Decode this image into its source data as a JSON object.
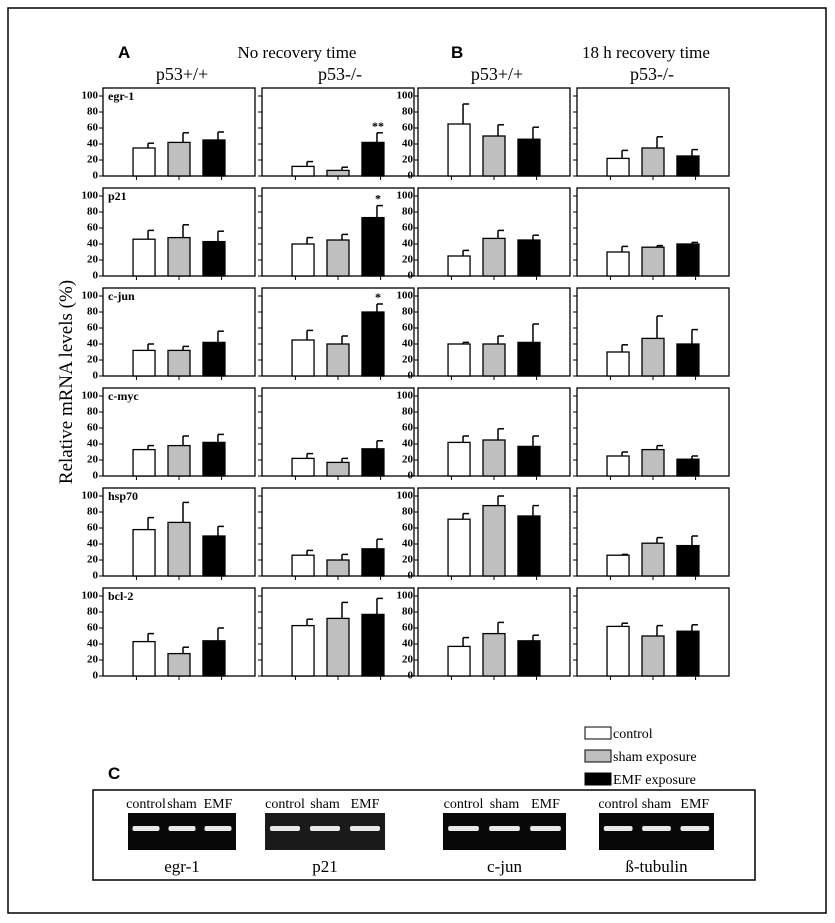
{
  "figure": {
    "panels": [
      {
        "label": "A",
        "title": "No recovery time",
        "columns": [
          "p53+/+",
          "p53-/-"
        ]
      },
      {
        "label": "B",
        "title": "18 h recovery time",
        "columns": [
          "p53+/+",
          "p53-/-"
        ]
      }
    ],
    "y_axis_label": "Relative mRNA levels (%)",
    "legend": [
      {
        "name": "control",
        "color": "#ffffff"
      },
      {
        "name": "sham exposure",
        "color": "#bfbfbf"
      },
      {
        "name": "EMF exposure",
        "color": "#000000"
      }
    ],
    "gel_panel": {
      "label": "C",
      "gels": [
        {
          "lanes": [
            "control",
            "sham",
            "EMF"
          ],
          "label": "egr-1"
        },
        {
          "lanes": [
            "control",
            "sham",
            "EMF"
          ],
          "label": "p21"
        },
        {
          "lanes": [
            "control",
            "sham",
            "EMF"
          ],
          "label": "c-jun"
        },
        {
          "lanes": [
            "control",
            "sham",
            "EMF"
          ],
          "label": "ß-tubulin"
        }
      ]
    }
  },
  "chart_data": [
    {
      "type": "bar",
      "title": "egr-1",
      "values": [
        35,
        42,
        45
      ],
      "errors": [
        6,
        12,
        10
      ],
      "ylim": [
        0,
        100
      ],
      "yticks": [
        0,
        20,
        40,
        60,
        80,
        100
      ],
      "ytick_labels": true
    },
    {
      "type": "bar",
      "values": [
        12,
        7,
        42
      ],
      "errors": [
        6,
        4,
        12
      ],
      "annotations": [
        null,
        null,
        "**"
      ],
      "ylim": [
        0,
        100
      ],
      "yticks": [
        0,
        20,
        40,
        60,
        80,
        100
      ],
      "ytick_labels": false
    },
    {
      "type": "bar",
      "values": [
        65,
        50,
        46
      ],
      "errors": [
        25,
        14,
        15
      ],
      "ylim": [
        0,
        100
      ],
      "yticks": [
        0,
        20,
        40,
        60,
        80,
        100
      ],
      "ytick_labels": true
    },
    {
      "type": "bar",
      "values": [
        22,
        35,
        25
      ],
      "errors": [
        10,
        14,
        8
      ],
      "ylim": [
        0,
        100
      ],
      "yticks": [
        0,
        20,
        40,
        60,
        80,
        100
      ],
      "ytick_labels": false
    },
    {
      "type": "bar",
      "title": "p21",
      "values": [
        46,
        48,
        43
      ],
      "errors": [
        11,
        16,
        13
      ],
      "ylim": [
        0,
        100
      ],
      "yticks": [
        0,
        20,
        40,
        60,
        80,
        100
      ],
      "ytick_labels": true
    },
    {
      "type": "bar",
      "values": [
        40,
        45,
        73
      ],
      "errors": [
        8,
        7,
        15
      ],
      "annotations": [
        null,
        null,
        "*"
      ],
      "ylim": [
        0,
        100
      ],
      "yticks": [
        0,
        20,
        40,
        60,
        80,
        100
      ],
      "ytick_labels": false
    },
    {
      "type": "bar",
      "values": [
        25,
        47,
        45
      ],
      "errors": [
        7,
        10,
        6
      ],
      "ylim": [
        0,
        100
      ],
      "yticks": [
        0,
        20,
        40,
        60,
        80,
        100
      ],
      "ytick_labels": true
    },
    {
      "type": "bar",
      "values": [
        30,
        36,
        40
      ],
      "errors": [
        7,
        2,
        2
      ],
      "ylim": [
        0,
        100
      ],
      "yticks": [
        0,
        20,
        40,
        60,
        80,
        100
      ],
      "ytick_labels": false
    },
    {
      "type": "bar",
      "title": "c-jun",
      "values": [
        32,
        32,
        42
      ],
      "errors": [
        8,
        5,
        14
      ],
      "ylim": [
        0,
        100
      ],
      "yticks": [
        0,
        20,
        40,
        60,
        80,
        100
      ],
      "ytick_labels": true
    },
    {
      "type": "bar",
      "values": [
        45,
        40,
        80
      ],
      "errors": [
        12,
        10,
        10
      ],
      "annotations": [
        null,
        null,
        "*"
      ],
      "ylim": [
        0,
        100
      ],
      "yticks": [
        0,
        20,
        40,
        60,
        80,
        100
      ],
      "ytick_labels": false
    },
    {
      "type": "bar",
      "values": [
        40,
        40,
        42
      ],
      "errors": [
        2,
        10,
        23
      ],
      "ylim": [
        0,
        100
      ],
      "yticks": [
        0,
        20,
        40,
        60,
        80,
        100
      ],
      "ytick_labels": true
    },
    {
      "type": "bar",
      "values": [
        30,
        47,
        40
      ],
      "errors": [
        9,
        28,
        18
      ],
      "ylim": [
        0,
        100
      ],
      "yticks": [
        0,
        20,
        40,
        60,
        80,
        100
      ],
      "ytick_labels": false
    },
    {
      "type": "bar",
      "title": "c-myc",
      "values": [
        33,
        38,
        42
      ],
      "errors": [
        5,
        12,
        10
      ],
      "ylim": [
        0,
        100
      ],
      "yticks": [
        0,
        20,
        40,
        60,
        80,
        100
      ],
      "ytick_labels": true
    },
    {
      "type": "bar",
      "values": [
        22,
        17,
        34
      ],
      "errors": [
        6,
        5,
        10
      ],
      "ylim": [
        0,
        100
      ],
      "yticks": [
        0,
        20,
        40,
        60,
        80,
        100
      ],
      "ytick_labels": false
    },
    {
      "type": "bar",
      "values": [
        42,
        45,
        37
      ],
      "errors": [
        8,
        14,
        13
      ],
      "ylim": [
        0,
        100
      ],
      "yticks": [
        0,
        20,
        40,
        60,
        80,
        100
      ],
      "ytick_labels": true
    },
    {
      "type": "bar",
      "values": [
        25,
        33,
        21
      ],
      "errors": [
        5,
        5,
        4
      ],
      "ylim": [
        0,
        100
      ],
      "yticks": [
        0,
        20,
        40,
        60,
        80,
        100
      ],
      "ytick_labels": false
    },
    {
      "type": "bar",
      "title": "hsp70",
      "values": [
        58,
        67,
        50
      ],
      "errors": [
        15,
        25,
        12
      ],
      "ylim": [
        0,
        100
      ],
      "yticks": [
        0,
        20,
        40,
        60,
        80,
        100
      ],
      "ytick_labels": true
    },
    {
      "type": "bar",
      "values": [
        26,
        20,
        34
      ],
      "errors": [
        6,
        7,
        12
      ],
      "ylim": [
        0,
        100
      ],
      "yticks": [
        0,
        20,
        40,
        60,
        80,
        100
      ],
      "ytick_labels": false
    },
    {
      "type": "bar",
      "values": [
        71,
        88,
        75
      ],
      "errors": [
        7,
        12,
        13
      ],
      "ylim": [
        0,
        100
      ],
      "yticks": [
        0,
        20,
        40,
        60,
        80,
        100
      ],
      "ytick_labels": true
    },
    {
      "type": "bar",
      "values": [
        26,
        41,
        38
      ],
      "errors": [
        1,
        7,
        12
      ],
      "ylim": [
        0,
        100
      ],
      "yticks": [
        0,
        20,
        40,
        60,
        80,
        100
      ],
      "ytick_labels": false
    },
    {
      "type": "bar",
      "title": "bcl-2",
      "values": [
        43,
        28,
        44
      ],
      "errors": [
        10,
        8,
        16
      ],
      "ylim": [
        0,
        100
      ],
      "yticks": [
        0,
        20,
        40,
        60,
        80,
        100
      ],
      "ytick_labels": true
    },
    {
      "type": "bar",
      "values": [
        63,
        72,
        77
      ],
      "errors": [
        8,
        20,
        20
      ],
      "ylim": [
        0,
        100
      ],
      "yticks": [
        0,
        20,
        40,
        60,
        80,
        100
      ],
      "ytick_labels": false
    },
    {
      "type": "bar",
      "values": [
        37,
        53,
        44
      ],
      "errors": [
        11,
        14,
        7
      ],
      "ylim": [
        0,
        100
      ],
      "yticks": [
        0,
        20,
        40,
        60,
        80,
        100
      ],
      "ytick_labels": true
    },
    {
      "type": "bar",
      "values": [
        62,
        50,
        56
      ],
      "errors": [
        4,
        13,
        8
      ],
      "ylim": [
        0,
        100
      ],
      "yticks": [
        0,
        20,
        40,
        60,
        80,
        100
      ],
      "ytick_labels": false
    }
  ]
}
